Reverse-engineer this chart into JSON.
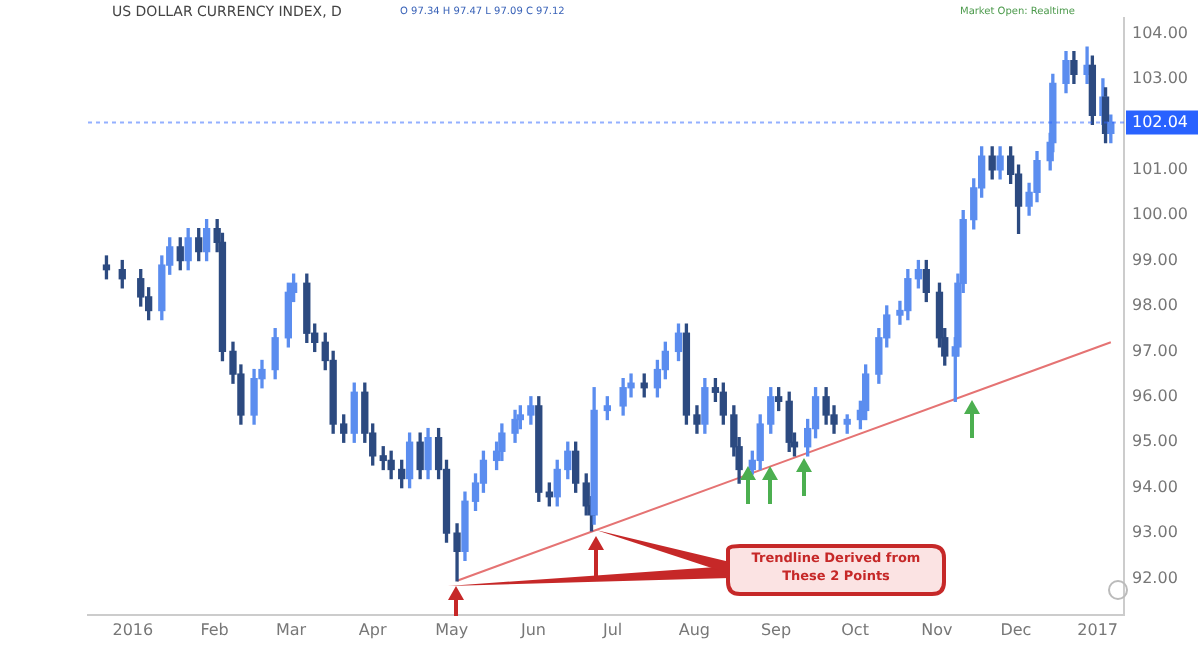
{
  "chart_data": {
    "type": "candlestick",
    "title": "US DOLLAR CURRENCY INDEX, D",
    "annotations": [
      "O 97.34 H 97.47 L 97.09 C 97.12",
      "Market Open: Realtime",
      "Trendline Derived from These 2 Points"
    ],
    "colors": [
      "#2c4a80",
      "#2c4a80",
      "#2c4a80",
      "#2c4a80",
      "#5b8def",
      "#5b8def",
      "#2c4a80",
      "#5b8def",
      "#2c4a80",
      "#5b8def",
      "#2c4a80",
      "#2c4a80",
      "#2c4a80",
      "#2c4a80",
      "#5b8def",
      "#5b8def",
      "#5b8def",
      "#5b8def",
      "#5b8def",
      "#2c4a80",
      "#2c4a80",
      "#2c4a80",
      "#2c4a80",
      "#2c4a80",
      "#5b8def",
      "#2c4a80",
      "#2c4a80",
      "#2c4a80",
      "#2c4a80",
      "#2c4a80",
      "#5b8def",
      "#2c4a80",
      "#5b8def",
      "#2c4a80",
      "#2c4a80",
      "#2c4a80",
      "#5b8def",
      "#5b8def",
      "#5b8def",
      "#5b8def",
      "#5b8def",
      "#5b8def",
      "#5b8def",
      "#5b8def",
      "#2c4a80",
      "#2c4a80",
      "#5b8def",
      "#5b8def",
      "#2c4a80",
      "#2c4a80",
      "#2c4a80",
      "#5b8def",
      "#5b8def",
      "#5b8def",
      "#5b8def",
      "#2c4a80",
      "#5b8def",
      "#5b8def",
      "#5b8def",
      "#2c4a80",
      "#2c4a80",
      "#5b8def",
      "#2c4a80",
      "#2c4a80",
      "#2c4a80",
      "#2c4a80",
      "#5b8def",
      "#5b8def",
      "#5b8def",
      "#2c4a80",
      "#2c4a80",
      "#2c4a80",
      "#5b8def",
      "#5b8def",
      "#2c4a80",
      "#2c4a80",
      "#5b8def",
      "#5b8def",
      "#5b8def",
      "#5b8def",
      "#5b8def",
      "#5b8def",
      "#5b8def",
      "#5b8def",
      "#2c4a80",
      "#2c4a80",
      "#2c4a80",
      "#5b8def",
      "#5b8def",
      "#5b8def",
      "#5b8def",
      "#5b8def",
      "#2c4a80",
      "#5b8def",
      "#2c4a80",
      "#2c4a80",
      "#5b8def",
      "#5b8def",
      "#5b8def",
      "#5b8def",
      "#5b8def",
      "#2c4a80",
      "#5b8def",
      "#2c4a80",
      "#5b8def",
      "#2c4a80",
      "#5b8def"
    ],
    "x": [
      "2015-12-22",
      "2015-12-28",
      "2016-01-04",
      "2016-01-07",
      "2016-01-12",
      "2016-01-15",
      "2016-01-19",
      "2016-01-22",
      "2016-01-26",
      "2016-01-29",
      "2016-02-02",
      "2016-02-04",
      "2016-02-08",
      "2016-02-11",
      "2016-02-16",
      "2016-02-19",
      "2016-02-24",
      "2016-02-29",
      "2016-03-02",
      "2016-03-07",
      "2016-03-10",
      "2016-03-14",
      "2016-03-17",
      "2016-03-21",
      "2016-03-25",
      "2016-03-29",
      "2016-04-01",
      "2016-04-05",
      "2016-04-08",
      "2016-04-12",
      "2016-04-15",
      "2016-04-19",
      "2016-04-22",
      "2016-04-26",
      "2016-04-29",
      "2016-05-03",
      "2016-05-06",
      "2016-05-10",
      "2016-05-13",
      "2016-05-18",
      "2016-05-20",
      "2016-05-25",
      "2016-05-27",
      "2016-05-31",
      "2016-06-03",
      "2016-06-07",
      "2016-06-10",
      "2016-06-14",
      "2016-06-17",
      "2016-06-21",
      "2016-06-23",
      "2016-06-24",
      "2016-06-29",
      "2016-07-05",
      "2016-07-08",
      "2016-07-13",
      "2016-07-18",
      "2016-07-21",
      "2016-07-26",
      "2016-07-29",
      "2016-08-02",
      "2016-08-05",
      "2016-08-09",
      "2016-08-12",
      "2016-08-16",
      "2016-08-18",
      "2016-08-23",
      "2016-08-26",
      "2016-08-30",
      "2016-09-02",
      "2016-09-06",
      "2016-09-08",
      "2016-09-13",
      "2016-09-16",
      "2016-09-20",
      "2016-09-23",
      "2016-09-28",
      "2016-10-03",
      "2016-10-05",
      "2016-10-10",
      "2016-10-13",
      "2016-10-18",
      "2016-10-21",
      "2016-10-25",
      "2016-10-28",
      "2016-11-02",
      "2016-11-04",
      "2016-11-08",
      "2016-11-09",
      "2016-11-11",
      "2016-11-15",
      "2016-11-18",
      "2016-11-22",
      "2016-11-25",
      "2016-11-29",
      "2016-12-02",
      "2016-12-06",
      "2016-12-09",
      "2016-12-14",
      "2016-12-15",
      "2016-12-20",
      "2016-12-23",
      "2016-12-28",
      "2016-12-30",
      "2017-01-03",
      "2017-01-04",
      "2017-01-06"
    ],
    "ohlc": [
      [
        98.9,
        99.1,
        98.6,
        98.8
      ],
      [
        98.8,
        99.0,
        98.4,
        98.6
      ],
      [
        98.6,
        98.8,
        98.0,
        98.2
      ],
      [
        98.2,
        98.4,
        97.7,
        97.9
      ],
      [
        97.9,
        99.1,
        97.7,
        98.9
      ],
      [
        98.9,
        99.5,
        98.7,
        99.3
      ],
      [
        99.3,
        99.5,
        98.8,
        99.0
      ],
      [
        99.0,
        99.7,
        98.8,
        99.5
      ],
      [
        99.5,
        99.7,
        99.0,
        99.2
      ],
      [
        99.2,
        99.9,
        99.0,
        99.7
      ],
      [
        99.7,
        99.9,
        99.2,
        99.4
      ],
      [
        99.4,
        99.6,
        96.8,
        97.0
      ],
      [
        97.0,
        97.2,
        96.3,
        96.5
      ],
      [
        96.5,
        96.7,
        95.4,
        95.6
      ],
      [
        95.6,
        96.6,
        95.4,
        96.4
      ],
      [
        96.4,
        96.8,
        96.2,
        96.6
      ],
      [
        96.6,
        97.5,
        96.4,
        97.3
      ],
      [
        97.3,
        98.5,
        97.1,
        98.3
      ],
      [
        98.3,
        98.7,
        98.1,
        98.5
      ],
      [
        98.5,
        98.7,
        97.2,
        97.4
      ],
      [
        97.4,
        97.6,
        97.0,
        97.2
      ],
      [
        97.2,
        97.4,
        96.6,
        96.8
      ],
      [
        96.8,
        97.0,
        95.2,
        95.4
      ],
      [
        95.4,
        95.6,
        95.0,
        95.2
      ],
      [
        95.2,
        96.3,
        95.0,
        96.1
      ],
      [
        96.1,
        96.3,
        95.0,
        95.2
      ],
      [
        95.2,
        95.4,
        94.5,
        94.7
      ],
      [
        94.7,
        94.9,
        94.4,
        94.6
      ],
      [
        94.6,
        94.8,
        94.2,
        94.4
      ],
      [
        94.4,
        94.6,
        94.0,
        94.2
      ],
      [
        94.2,
        95.2,
        94.0,
        95.0
      ],
      [
        95.0,
        95.2,
        94.2,
        94.4
      ],
      [
        94.4,
        95.3,
        94.2,
        95.1
      ],
      [
        95.1,
        95.3,
        94.2,
        94.4
      ],
      [
        94.4,
        94.6,
        92.8,
        93.0
      ],
      [
        93.0,
        93.2,
        91.95,
        92.6
      ],
      [
        92.6,
        93.9,
        92.4,
        93.7
      ],
      [
        93.7,
        94.3,
        93.5,
        94.1
      ],
      [
        94.1,
        94.8,
        93.9,
        94.6
      ],
      [
        94.6,
        95.0,
        94.4,
        94.8
      ],
      [
        94.8,
        95.4,
        94.6,
        95.2
      ],
      [
        95.2,
        95.7,
        95.0,
        95.5
      ],
      [
        95.5,
        95.8,
        95.3,
        95.6
      ],
      [
        95.6,
        96.0,
        95.4,
        95.8
      ],
      [
        95.8,
        96.0,
        93.7,
        93.9
      ],
      [
        93.9,
        94.1,
        93.6,
        93.8
      ],
      [
        93.8,
        94.6,
        93.6,
        94.4
      ],
      [
        94.4,
        95.0,
        94.2,
        94.8
      ],
      [
        94.8,
        95.0,
        93.9,
        94.1
      ],
      [
        94.1,
        94.3,
        93.4,
        93.6
      ],
      [
        93.6,
        93.8,
        93.05,
        93.4
      ],
      [
        93.4,
        96.2,
        93.2,
        95.7
      ],
      [
        95.7,
        96.0,
        95.5,
        95.8
      ],
      [
        95.8,
        96.4,
        95.6,
        96.2
      ],
      [
        96.2,
        96.5,
        96.0,
        96.3
      ],
      [
        96.3,
        96.5,
        96.0,
        96.2
      ],
      [
        96.2,
        96.8,
        96.0,
        96.6
      ],
      [
        96.6,
        97.2,
        96.4,
        97.0
      ],
      [
        97.0,
        97.6,
        96.8,
        97.4
      ],
      [
        97.4,
        97.6,
        95.4,
        95.6
      ],
      [
        95.6,
        95.8,
        95.2,
        95.4
      ],
      [
        95.4,
        96.4,
        95.2,
        96.2
      ],
      [
        96.2,
        96.4,
        95.9,
        96.1
      ],
      [
        96.1,
        96.3,
        95.4,
        95.6
      ],
      [
        95.6,
        95.8,
        94.7,
        94.9
      ],
      [
        94.9,
        95.1,
        94.1,
        94.4
      ],
      [
        94.4,
        94.8,
        94.3,
        94.6
      ],
      [
        94.6,
        95.6,
        94.4,
        95.4
      ],
      [
        95.4,
        96.2,
        95.2,
        96.0
      ],
      [
        96.0,
        96.2,
        95.7,
        95.9
      ],
      [
        95.9,
        96.1,
        94.8,
        95.0
      ],
      [
        95.0,
        95.2,
        94.7,
        94.9
      ],
      [
        94.9,
        95.5,
        94.7,
        95.3
      ],
      [
        95.3,
        96.2,
        95.1,
        96.0
      ],
      [
        96.0,
        96.2,
        95.4,
        95.6
      ],
      [
        95.6,
        95.8,
        95.2,
        95.4
      ],
      [
        95.4,
        95.6,
        95.2,
        95.5
      ],
      [
        95.5,
        95.9,
        95.3,
        95.7
      ],
      [
        95.7,
        96.7,
        95.5,
        96.5
      ],
      [
        96.5,
        97.5,
        96.3,
        97.3
      ],
      [
        97.3,
        98.0,
        97.1,
        97.8
      ],
      [
        97.8,
        98.1,
        97.6,
        97.9
      ],
      [
        97.9,
        98.8,
        97.7,
        98.6
      ],
      [
        98.6,
        99.0,
        98.4,
        98.8
      ],
      [
        98.8,
        99.0,
        98.1,
        98.3
      ],
      [
        98.3,
        98.5,
        97.1,
        97.3
      ],
      [
        97.3,
        97.5,
        96.7,
        96.9
      ],
      [
        96.9,
        97.3,
        95.9,
        97.1
      ],
      [
        97.1,
        98.7,
        96.9,
        98.5
      ],
      [
        98.5,
        100.1,
        98.3,
        99.9
      ],
      [
        99.9,
        100.8,
        99.7,
        100.6
      ],
      [
        100.6,
        101.5,
        100.4,
        101.3
      ],
      [
        101.3,
        101.5,
        100.8,
        101.0
      ],
      [
        101.0,
        101.5,
        100.8,
        101.3
      ],
      [
        101.3,
        101.5,
        100.7,
        100.9
      ],
      [
        100.9,
        101.1,
        99.6,
        100.2
      ],
      [
        100.2,
        100.7,
        100.0,
        100.5
      ],
      [
        100.5,
        101.4,
        100.3,
        101.2
      ],
      [
        101.2,
        101.8,
        101.0,
        101.6
      ],
      [
        101.6,
        103.1,
        101.4,
        102.9
      ],
      [
        102.9,
        103.6,
        102.7,
        103.4
      ],
      [
        103.4,
        103.6,
        102.9,
        103.1
      ],
      [
        103.1,
        103.7,
        102.9,
        103.3
      ],
      [
        103.3,
        103.5,
        102.0,
        102.2
      ],
      [
        102.2,
        103.0,
        102.0,
        102.6
      ],
      [
        102.6,
        102.8,
        101.6,
        101.8
      ],
      [
        101.8,
        102.2,
        101.6,
        102.04
      ]
    ],
    "series": [
      {
        "type": "line",
        "color": "#e57373",
        "x": [
          "2016-05-03",
          "2017-01-06"
        ],
        "values": [
          91.95,
          97.2
        ]
      }
    ],
    "ref_lines": [
      {
        "axis": "y",
        "value": 102.04,
        "label": "102.04",
        "color": "#2962ff",
        "line_style": "dotted"
      }
    ],
    "xlim": [
      "2015-12-15",
      "2017-01-11"
    ],
    "xticks": [
      {
        "value": "2016-01-01",
        "label": "2016"
      },
      {
        "value": "2016-02-01",
        "label": "Feb"
      },
      {
        "value": "2016-03-01",
        "label": "Mar"
      },
      {
        "value": "2016-04-01",
        "label": "Apr"
      },
      {
        "value": "2016-05-01",
        "label": "May"
      },
      {
        "value": "2016-06-01",
        "label": "Jun"
      },
      {
        "value": "2016-07-01",
        "label": "Jul"
      },
      {
        "value": "2016-08-01",
        "label": "Aug"
      },
      {
        "value": "2016-09-01",
        "label": "Sep"
      },
      {
        "value": "2016-10-01",
        "label": "Oct"
      },
      {
        "value": "2016-11-01",
        "label": "Nov"
      },
      {
        "value": "2016-12-01",
        "label": "Dec"
      },
      {
        "value": "2017-01-01",
        "label": "2017"
      }
    ],
    "ylim": [
      91.2,
      104.35
    ],
    "yticks": [
      {
        "value": 92,
        "label": "92.00"
      },
      {
        "value": 93,
        "label": "93.00"
      },
      {
        "value": 94,
        "label": "94.00"
      },
      {
        "value": 95,
        "label": "95.00"
      },
      {
        "value": 96,
        "label": "96.00"
      },
      {
        "value": 97,
        "label": "97.00"
      },
      {
        "value": 98,
        "label": "98.00"
      },
      {
        "value": 99,
        "label": "99.00"
      },
      {
        "value": 100,
        "label": "100.00"
      },
      {
        "value": 101,
        "label": "101.00"
      },
      {
        "value": 103,
        "label": "103.00"
      },
      {
        "value": 104,
        "label": "104.00"
      }
    ],
    "grid": false,
    "legend": false
  }
}
